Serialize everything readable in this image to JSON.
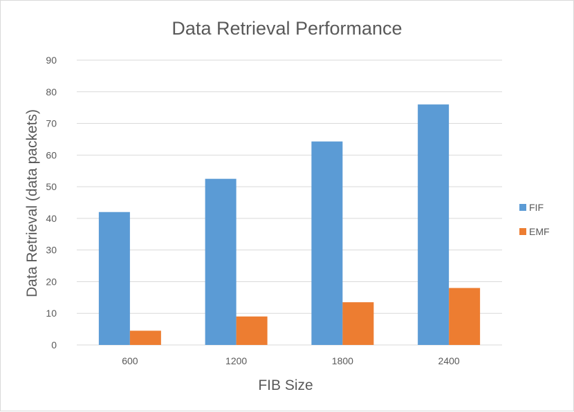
{
  "chart_data": {
    "type": "bar",
    "title": "Data Retrieval Performance",
    "xlabel": "FIB Size",
    "ylabel": "Data Retrieval (data packets)",
    "categories": [
      "600",
      "1200",
      "1800",
      "2400"
    ],
    "series": [
      {
        "name": "FIF",
        "color": "#5b9bd5",
        "values": [
          42,
          52.5,
          64.3,
          76
        ]
      },
      {
        "name": "EMF",
        "color": "#ed7d31",
        "values": [
          4.5,
          9,
          13.5,
          18
        ]
      }
    ],
    "ylim": [
      0,
      90
    ],
    "yticks": [
      "0",
      "10",
      "20",
      "30",
      "40",
      "50",
      "60",
      "70",
      "80",
      "90"
    ],
    "grid": true,
    "legend_position": "right"
  }
}
